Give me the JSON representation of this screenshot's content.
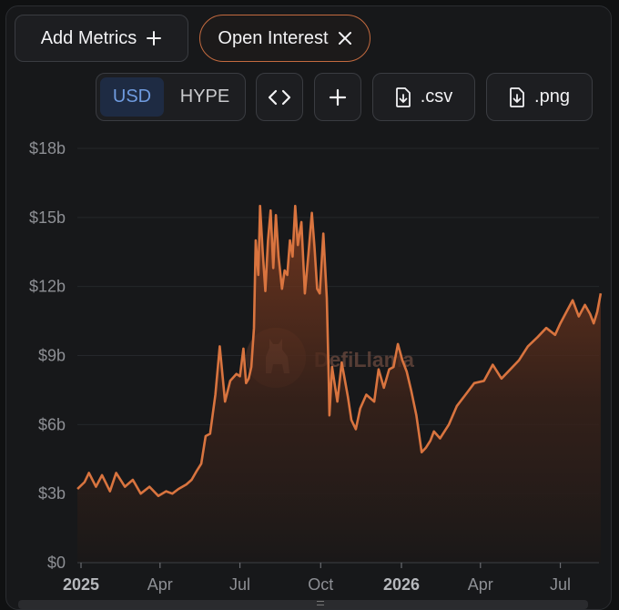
{
  "toolbar": {
    "add_metrics_label": "Add Metrics",
    "active_metric_label": "Open Interest",
    "denom_options": [
      "USD",
      "HYPE"
    ],
    "selected_denom": "USD",
    "csv_label": ".csv",
    "png_label": ".png"
  },
  "watermark": "DefiLlama",
  "colors": {
    "line": "#d9743f",
    "accent_border": "#c36a3f",
    "selected_bg": "#1e2b43",
    "selected_text": "#6f9bdf"
  },
  "icons": [
    "plus-icon",
    "close-icon",
    "code-icon",
    "plus-icon",
    "file-download-icon",
    "file-download-icon",
    "defillama-logo"
  ],
  "chart_data": {
    "type": "area",
    "title": "",
    "xlabel": "",
    "ylabel": "",
    "x_ticks": [
      {
        "label": "2025",
        "date": "2025-01-01",
        "bold": true
      },
      {
        "label": "Apr",
        "date": "2025-04-01",
        "bold": false
      },
      {
        "label": "Jul",
        "date": "2025-07-01",
        "bold": false
      },
      {
        "label": "Oct",
        "date": "2025-10-01",
        "bold": false
      },
      {
        "label": "2026",
        "date": "2026-01-01",
        "bold": true
      },
      {
        "label": "Apr",
        "date": "2026-04-01",
        "bold": false
      },
      {
        "label": "Jul",
        "date": "2026-07-01",
        "bold": false
      }
    ],
    "y_ticks": [
      "$0",
      "$3b",
      "$6b",
      "$9b",
      "$12b",
      "$15b",
      "$18b"
    ],
    "ylim": [
      0,
      18
    ],
    "y_unit": "billion USD",
    "series": [
      {
        "dates": [
          "2024-12-28",
          "2025-01-05",
          "2025-01-10",
          "2025-01-18",
          "2025-01-25",
          "2025-02-03",
          "2025-02-10",
          "2025-02-20",
          "2025-03-01",
          "2025-03-10",
          "2025-03-20",
          "2025-03-30",
          "2025-04-08",
          "2025-04-15",
          "2025-04-22",
          "2025-05-01",
          "2025-05-07",
          "2025-05-13",
          "2025-05-18",
          "2025-05-23",
          "2025-05-28",
          "2025-06-03",
          "2025-06-08",
          "2025-06-14",
          "2025-06-20",
          "2025-06-27",
          "2025-07-01",
          "2025-07-05",
          "2025-07-08",
          "2025-07-11",
          "2025-07-14",
          "2025-07-17",
          "2025-07-19",
          "2025-07-22",
          "2025-07-24",
          "2025-07-27",
          "2025-07-30",
          "2025-08-02",
          "2025-08-05",
          "2025-08-08",
          "2025-08-11",
          "2025-08-14",
          "2025-08-18",
          "2025-08-21",
          "2025-08-24",
          "2025-08-27",
          "2025-08-30",
          "2025-09-02",
          "2025-09-05",
          "2025-09-09",
          "2025-09-13",
          "2025-09-17",
          "2025-09-21",
          "2025-09-24",
          "2025-09-27",
          "2025-09-30",
          "2025-10-04",
          "2025-10-08",
          "2025-10-10",
          "2025-10-11",
          "2025-10-14",
          "2025-10-20",
          "2025-10-25",
          "2025-11-01",
          "2025-11-05",
          "2025-11-10",
          "2025-11-15",
          "2025-11-22",
          "2025-12-01",
          "2025-12-06",
          "2025-12-12",
          "2025-12-18",
          "2025-12-23",
          "2025-12-28",
          "2026-01-02",
          "2026-01-07",
          "2026-01-12",
          "2026-01-18",
          "2026-01-24",
          "2026-01-29",
          "2026-02-03",
          "2026-02-07",
          "2026-02-14",
          "2026-02-24",
          "2026-03-05",
          "2026-03-15",
          "2026-03-25",
          "2026-04-05",
          "2026-04-15",
          "2026-04-25",
          "2026-05-05",
          "2026-05-15",
          "2026-05-25",
          "2026-06-05",
          "2026-06-15",
          "2026-06-25",
          "2026-07-01",
          "2026-07-08",
          "2026-07-15",
          "2026-07-22",
          "2026-07-29",
          "2026-08-04",
          "2026-08-08",
          "2026-08-12",
          "2026-08-16"
        ],
        "values": [
          3.2,
          3.5,
          3.9,
          3.3,
          3.8,
          3.1,
          3.9,
          3.3,
          3.6,
          3.0,
          3.3,
          2.9,
          3.1,
          3.0,
          3.2,
          3.4,
          3.6,
          4.0,
          4.3,
          5.5,
          5.6,
          7.3,
          9.4,
          7.0,
          7.9,
          8.2,
          8.1,
          9.3,
          7.8,
          8.0,
          8.5,
          10.2,
          14.0,
          12.5,
          15.5,
          13.5,
          11.8,
          14.0,
          15.3,
          12.8,
          15.1,
          13.3,
          11.9,
          12.7,
          12.5,
          14.0,
          13.3,
          15.5,
          13.8,
          14.8,
          11.7,
          13.4,
          15.2,
          13.7,
          11.9,
          11.7,
          14.3,
          11.5,
          8.2,
          6.4,
          8.5,
          7.0,
          8.7,
          7.2,
          6.2,
          5.8,
          6.7,
          7.3,
          7.0,
          8.4,
          7.6,
          8.4,
          8.5,
          9.5,
          8.8,
          8.3,
          7.5,
          6.4,
          4.8,
          5.0,
          5.3,
          5.7,
          5.4,
          6.0,
          6.8,
          7.3,
          7.8,
          7.9,
          8.6,
          8.0,
          8.4,
          8.8,
          9.4,
          9.8,
          10.2,
          9.9,
          10.4,
          10.9,
          11.4,
          10.7,
          11.2,
          10.8,
          10.4,
          10.9,
          11.7
        ]
      }
    ]
  }
}
